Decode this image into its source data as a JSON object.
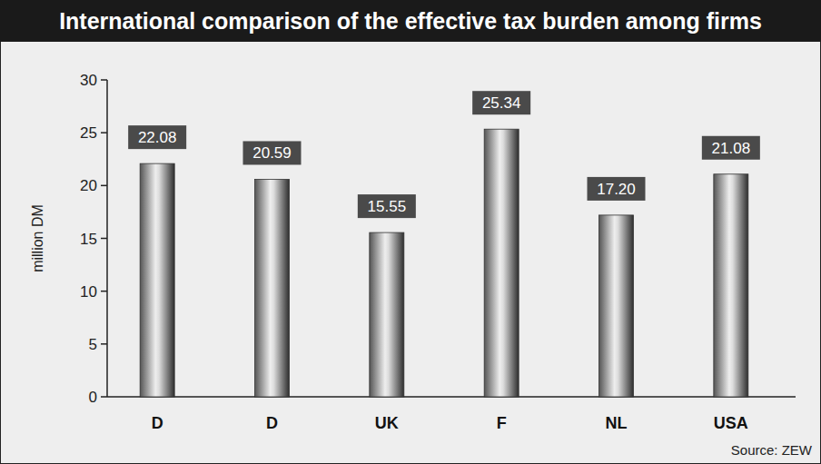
{
  "chart_data": {
    "type": "bar",
    "title": "International comparison of the effective tax burden among firms",
    "y_label": "million DM",
    "categories": [
      "D",
      "D",
      "UK",
      "F",
      "NL",
      "USA"
    ],
    "values": [
      22.08,
      20.59,
      15.55,
      25.34,
      17.2,
      21.08
    ],
    "value_labels": [
      "22.08",
      "20.59",
      "15.55",
      "25.34",
      "17.20",
      "21.08"
    ],
    "ylim": [
      0,
      30
    ],
    "yticks": [
      0,
      5,
      10,
      15,
      20,
      25,
      30
    ],
    "grid": false,
    "data_labels": true,
    "color": "#555555",
    "source": "Source: ZEW"
  }
}
